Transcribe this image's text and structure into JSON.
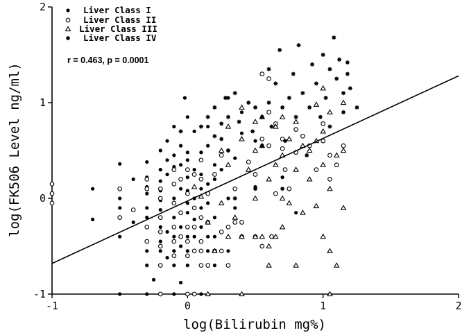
{
  "chart_data": {
    "type": "scatter",
    "xlabel": "log(Bilirubin mg%)",
    "ylabel": "log(FK506 Level ng/ml)",
    "xlim": [
      -1,
      2
    ],
    "ylim": [
      -1,
      2
    ],
    "xticks": [
      "-1",
      "0",
      "1",
      "2"
    ],
    "yticks": [
      "-1",
      "0",
      "1",
      "2"
    ],
    "annotation": "r = 0.463, p = 0.0001",
    "legend_position": "top-left",
    "regression_line": {
      "x": [
        -1,
        2
      ],
      "y": [
        -0.68,
        1.28
      ]
    },
    "series": [
      {
        "name": "Liver Class I",
        "marker": "filled-circle",
        "points": [
          [
            -0.7,
            0.1
          ],
          [
            -0.7,
            -0.22
          ],
          [
            -0.5,
            0.36
          ],
          [
            -0.5,
            0.0
          ],
          [
            -0.5,
            -0.1
          ],
          [
            -0.5,
            -0.4
          ],
          [
            -0.5,
            -1.0
          ],
          [
            -0.4,
            0.2
          ],
          [
            -0.4,
            -0.25
          ],
          [
            -0.3,
            0.38
          ],
          [
            -0.3,
            0.22
          ],
          [
            -0.3,
            0.12
          ],
          [
            -0.3,
            0.05
          ],
          [
            -0.3,
            -0.1
          ],
          [
            -0.3,
            -0.2
          ],
          [
            -0.3,
            -0.55
          ],
          [
            -0.3,
            -0.7
          ],
          [
            -0.3,
            -1.0
          ],
          [
            -0.2,
            0.5
          ],
          [
            -0.2,
            0.3
          ],
          [
            -0.2,
            0.18
          ],
          [
            -0.2,
            0.08
          ],
          [
            -0.2,
            -0.02
          ],
          [
            -0.2,
            -0.12
          ],
          [
            -0.2,
            -0.3
          ],
          [
            -0.2,
            -0.45
          ],
          [
            -0.2,
            -0.55
          ],
          [
            -0.2,
            -0.7
          ],
          [
            -0.15,
            0.6
          ],
          [
            -0.15,
            0.4
          ],
          [
            -0.15,
            0.25
          ],
          [
            -0.15,
            -0.35
          ],
          [
            -0.15,
            -0.62
          ],
          [
            -0.1,
            0.75
          ],
          [
            -0.1,
            0.45
          ],
          [
            -0.1,
            0.33
          ],
          [
            -0.1,
            0.15
          ],
          [
            -0.1,
            0.0
          ],
          [
            -0.1,
            -0.2
          ],
          [
            -0.1,
            -0.4
          ],
          [
            -0.1,
            -0.55
          ],
          [
            -0.1,
            -0.7
          ],
          [
            -0.1,
            -1.0
          ],
          [
            -0.05,
            0.55
          ],
          [
            -0.05,
            0.35
          ],
          [
            -0.05,
            0.1
          ],
          [
            -0.05,
            -0.3
          ],
          [
            -0.05,
            -0.5
          ],
          [
            0.0,
            0.85
          ],
          [
            0.0,
            0.48
          ],
          [
            0.0,
            0.4
          ],
          [
            0.0,
            0.22
          ],
          [
            0.0,
            0.08
          ],
          [
            0.0,
            -0.05
          ],
          [
            0.0,
            -0.15
          ],
          [
            0.0,
            -0.4
          ],
          [
            0.0,
            -0.55
          ],
          [
            0.0,
            -0.7
          ],
          [
            -0.02,
            1.05
          ],
          [
            0.05,
            0.7
          ],
          [
            0.05,
            0.3
          ],
          [
            0.05,
            0.0
          ],
          [
            0.05,
            -0.22
          ],
          [
            0.05,
            -0.4
          ],
          [
            0.05,
            -0.55
          ],
          [
            0.1,
            0.48
          ],
          [
            0.1,
            0.25
          ],
          [
            0.1,
            0.1
          ],
          [
            0.1,
            -0.1
          ],
          [
            0.1,
            -0.3
          ],
          [
            0.1,
            -0.7
          ],
          [
            0.1,
            -1.0
          ],
          [
            0.15,
            0.75
          ],
          [
            0.15,
            0.55
          ],
          [
            0.15,
            0.15
          ],
          [
            0.15,
            -0.05
          ],
          [
            0.15,
            -0.4
          ],
          [
            0.15,
            -0.55
          ],
          [
            0.2,
            0.35
          ],
          [
            0.2,
            0.2
          ],
          [
            0.2,
            -0.2
          ],
          [
            0.2,
            -0.4
          ],
          [
            0.2,
            -0.7
          ],
          [
            0.25,
            0.45
          ],
          [
            0.25,
            0.3
          ],
          [
            0.3,
            1.05
          ],
          [
            0.3,
            0.5
          ],
          [
            0.3,
            0.0
          ],
          [
            0.3,
            -0.55
          ],
          [
            0.35,
            0.42
          ],
          [
            0.35,
            -0.1
          ],
          [
            0.4,
            0.9
          ],
          [
            0.4,
            0.68
          ],
          [
            0.45,
            0.38
          ],
          [
            0.5,
            0.6
          ],
          [
            0.5,
            0.12
          ],
          [
            0.6,
            0.55
          ],
          [
            0.65,
            0.35
          ],
          [
            0.7,
            0.22
          ],
          [
            0.8,
            -0.15
          ],
          [
            1.05,
            -1.0
          ],
          [
            -0.25,
            -0.85
          ],
          [
            -0.05,
            -0.88
          ]
        ]
      },
      {
        "name": "Liver Class II",
        "marker": "open-circle",
        "points": [
          [
            -1.0,
            0.15
          ],
          [
            -1.0,
            0.05
          ],
          [
            -1.0,
            -0.05
          ],
          [
            -0.5,
            0.1
          ],
          [
            -0.5,
            -0.2
          ],
          [
            -0.4,
            -0.12
          ],
          [
            -0.3,
            0.2
          ],
          [
            -0.3,
            0.1
          ],
          [
            -0.3,
            -0.3
          ],
          [
            -0.3,
            -0.45
          ],
          [
            -0.2,
            0.1
          ],
          [
            -0.2,
            0.0
          ],
          [
            -0.2,
            -0.2
          ],
          [
            -0.2,
            -0.35
          ],
          [
            -0.2,
            -0.5
          ],
          [
            -0.2,
            -0.7
          ],
          [
            -0.2,
            -1.0
          ],
          [
            -0.1,
            0.3
          ],
          [
            -0.1,
            0.15
          ],
          [
            -0.1,
            -0.05
          ],
          [
            -0.1,
            -0.3
          ],
          [
            -0.1,
            -0.45
          ],
          [
            -0.1,
            -0.6
          ],
          [
            -0.05,
            0.2
          ],
          [
            -0.05,
            -0.15
          ],
          [
            -0.05,
            -0.4
          ],
          [
            0.0,
            0.3
          ],
          [
            0.0,
            0.05
          ],
          [
            0.0,
            -0.3
          ],
          [
            0.0,
            -0.45
          ],
          [
            0.0,
            -0.6
          ],
          [
            0.0,
            -1.0
          ],
          [
            0.05,
            0.25
          ],
          [
            0.05,
            -0.1
          ],
          [
            0.05,
            -0.3
          ],
          [
            0.05,
            -0.55
          ],
          [
            0.05,
            -1.0
          ],
          [
            0.1,
            0.4
          ],
          [
            0.1,
            0.2
          ],
          [
            0.1,
            -0.2
          ],
          [
            0.1,
            -0.45
          ],
          [
            0.1,
            -0.55
          ],
          [
            0.1,
            -0.7
          ],
          [
            0.15,
            0.05
          ],
          [
            0.15,
            -0.25
          ],
          [
            0.15,
            -0.7
          ],
          [
            0.2,
            0.25
          ],
          [
            0.2,
            -0.55
          ],
          [
            0.25,
            0.45
          ],
          [
            0.25,
            -0.35
          ],
          [
            0.25,
            -0.55
          ],
          [
            0.3,
            -0.3
          ],
          [
            0.3,
            -0.7
          ],
          [
            0.35,
            0.1
          ],
          [
            0.35,
            -0.25
          ],
          [
            0.4,
            -0.25
          ],
          [
            0.4,
            -0.4
          ],
          [
            0.45,
            0.38
          ],
          [
            0.5,
            0.25
          ],
          [
            0.5,
            -0.4
          ],
          [
            0.55,
            1.3
          ],
          [
            0.55,
            0.62
          ],
          [
            0.55,
            -0.5
          ],
          [
            0.6,
            1.25
          ],
          [
            0.6,
            0.9
          ],
          [
            0.6,
            0.55
          ],
          [
            0.62,
            -0.4
          ],
          [
            0.65,
            0.78
          ],
          [
            0.65,
            0.05
          ],
          [
            0.7,
            0.62
          ],
          [
            0.7,
            0.52
          ],
          [
            0.72,
            0.3
          ],
          [
            0.75,
            0.1
          ],
          [
            0.8,
            0.72
          ],
          [
            0.8,
            0.48
          ],
          [
            0.85,
            0.65
          ],
          [
            0.9,
            0.55
          ],
          [
            0.95,
            0.3
          ],
          [
            1.0,
            0.6
          ],
          [
            1.0,
            0.78
          ],
          [
            1.05,
            0.45
          ],
          [
            1.05,
            0.2
          ],
          [
            1.1,
            0.35
          ],
          [
            1.15,
            0.55
          ]
        ]
      },
      {
        "name": "Liver Class III",
        "marker": "open-triangle",
        "points": [
          [
            0.05,
            0.12
          ],
          [
            0.1,
            0.02
          ],
          [
            0.15,
            -0.25
          ],
          [
            0.2,
            -0.55
          ],
          [
            0.25,
            0.5
          ],
          [
            0.25,
            -0.05
          ],
          [
            0.3,
            0.75
          ],
          [
            0.3,
            0.35
          ],
          [
            0.3,
            -0.4
          ],
          [
            0.35,
            -0.2
          ],
          [
            0.4,
            0.95
          ],
          [
            0.4,
            0.62
          ],
          [
            0.4,
            -0.4
          ],
          [
            0.45,
            0.3
          ],
          [
            0.5,
            0.8
          ],
          [
            0.5,
            0.5
          ],
          [
            0.5,
            0.0
          ],
          [
            0.5,
            -0.4
          ],
          [
            0.55,
            0.85
          ],
          [
            0.55,
            0.55
          ],
          [
            0.55,
            -0.4
          ],
          [
            0.6,
            0.2
          ],
          [
            0.6,
            -0.5
          ],
          [
            0.6,
            -0.7
          ],
          [
            0.65,
            0.75
          ],
          [
            0.65,
            0.35
          ],
          [
            0.65,
            -0.4
          ],
          [
            0.7,
            0.85
          ],
          [
            0.7,
            0.45
          ],
          [
            0.7,
            0.0
          ],
          [
            0.7,
            -0.3
          ],
          [
            0.75,
            0.62
          ],
          [
            0.75,
            -0.05
          ],
          [
            0.8,
            0.8
          ],
          [
            0.8,
            0.3
          ],
          [
            0.8,
            -0.7
          ],
          [
            0.85,
            0.55
          ],
          [
            0.85,
            -0.15
          ],
          [
            0.9,
            0.5
          ],
          [
            0.9,
            0.2
          ],
          [
            0.95,
            0.98
          ],
          [
            0.95,
            0.6
          ],
          [
            0.95,
            -0.08
          ],
          [
            1.0,
            0.7
          ],
          [
            1.0,
            0.35
          ],
          [
            1.0,
            -0.4
          ],
          [
            1.05,
            0.9
          ],
          [
            1.05,
            0.1
          ],
          [
            1.05,
            -0.55
          ],
          [
            1.1,
            0.45
          ],
          [
            1.1,
            -0.7
          ],
          [
            1.15,
            1.0
          ],
          [
            1.15,
            0.5
          ],
          [
            1.15,
            -0.1
          ],
          [
            1.0,
            1.15
          ],
          [
            0.4,
            -1.0
          ],
          [
            0.15,
            -1.0
          ],
          [
            1.05,
            -1.0
          ]
        ]
      },
      {
        "name": "Liver Class IV",
        "marker": "asterisk",
        "points": [
          [
            -0.05,
            0.7
          ],
          [
            0.1,
            0.75
          ],
          [
            0.15,
            0.85
          ],
          [
            0.2,
            0.95
          ],
          [
            0.2,
            0.65
          ],
          [
            0.25,
            0.78
          ],
          [
            0.28,
            1.05
          ],
          [
            0.3,
            0.5
          ],
          [
            0.3,
            0.85
          ],
          [
            0.35,
            1.1
          ],
          [
            0.38,
            0.8
          ],
          [
            0.45,
            1.0
          ],
          [
            0.48,
            0.7
          ],
          [
            0.5,
            0.95
          ],
          [
            0.55,
            0.55
          ],
          [
            0.55,
            0.85
          ],
          [
            0.6,
            1.35
          ],
          [
            0.6,
            1.0
          ],
          [
            0.62,
            0.75
          ],
          [
            0.65,
            1.2
          ],
          [
            0.68,
            1.55
          ],
          [
            0.7,
            0.95
          ],
          [
            0.72,
            0.6
          ],
          [
            0.75,
            1.05
          ],
          [
            0.78,
            1.3
          ],
          [
            0.8,
            0.85
          ],
          [
            0.82,
            1.6
          ],
          [
            0.85,
            1.1
          ],
          [
            0.88,
            0.45
          ],
          [
            0.9,
            0.95
          ],
          [
            0.92,
            1.4
          ],
          [
            0.95,
            1.2
          ],
          [
            0.98,
            0.85
          ],
          [
            1.0,
            1.5
          ],
          [
            1.02,
            1.05
          ],
          [
            1.05,
            1.35
          ],
          [
            1.05,
            0.75
          ],
          [
            1.08,
            1.68
          ],
          [
            1.1,
            1.25
          ],
          [
            1.12,
            1.45
          ],
          [
            1.15,
            1.1
          ],
          [
            1.15,
            0.9
          ],
          [
            1.18,
            1.3
          ],
          [
            1.2,
            1.15
          ],
          [
            1.25,
            0.95
          ],
          [
            1.18,
            1.42
          ],
          [
            0.35,
            0.0
          ],
          [
            0.7,
            0.1
          ],
          [
            0.5,
            0.1
          ],
          [
            0.25,
            0.62
          ]
        ]
      }
    ]
  }
}
